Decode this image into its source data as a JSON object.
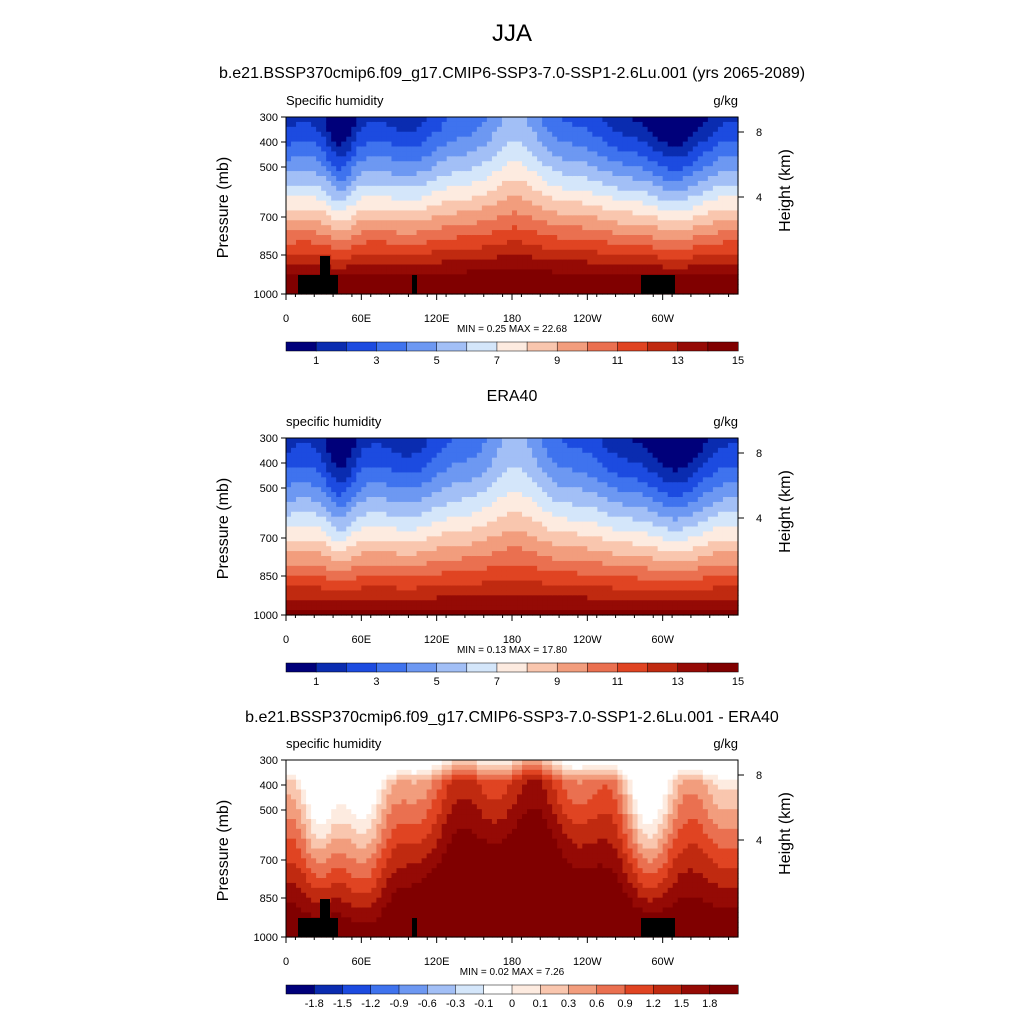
{
  "figure": {
    "main_title": "JJA"
  },
  "colors": {
    "abs_scale": [
      "#00007a",
      "#0a2cb0",
      "#1c4be0",
      "#3f73ee",
      "#6d98f2",
      "#a2bff6",
      "#d4e6fa",
      "#fdebe0",
      "#f9c6ae",
      "#f29d7d",
      "#ea7050",
      "#e04422",
      "#c02a10",
      "#950a05",
      "#800000"
    ],
    "diff_scale": [
      "#00007a",
      "#0a2cb0",
      "#1c4be0",
      "#3f73ee",
      "#6d98f2",
      "#a2bff6",
      "#d4e6fa",
      "#ffffff",
      "#fdebe0",
      "#f9c6ae",
      "#f29d7d",
      "#ea7050",
      "#e04422",
      "#c02a10",
      "#950a05",
      "#800000"
    ]
  },
  "chart_data": [
    {
      "type": "heatmap",
      "title": "b.e21.BSSP370cmip6.f09_g17.CMIP6-SSP3-7.0-SSP1-2.6Lu.001 (yrs 2065-2089)",
      "left_label": "Specific humidity",
      "right_label": "g/kg",
      "xlabel": "",
      "ylabel": "Pressure (mb)",
      "y2label": "Height (km)",
      "x_ticks": [
        "0",
        "60E",
        "120E",
        "180",
        "120W",
        "60W"
      ],
      "y_ticks": [
        "300",
        "400",
        "500",
        "700",
        "850",
        "1000"
      ],
      "y2_ticks": [
        "8",
        "4"
      ],
      "min_max": "MIN =   0.25  MAX =  22.68",
      "colorbar_labels": [
        "1",
        "3",
        "5",
        "7",
        "9",
        "11",
        "13",
        "15"
      ],
      "scale": "abs",
      "shift": 0.0,
      "topography": true
    },
    {
      "type": "heatmap",
      "title": "ERA40",
      "left_label": "specific humidity",
      "right_label": "g/kg",
      "xlabel": "",
      "ylabel": "Pressure (mb)",
      "y2label": "Height (km)",
      "x_ticks": [
        "0",
        "60E",
        "120E",
        "180",
        "120W",
        "60W"
      ],
      "y_ticks": [
        "300",
        "400",
        "500",
        "700",
        "850",
        "1000"
      ],
      "y2_ticks": [
        "8",
        "4"
      ],
      "min_max": "MIN =   0.13  MAX =  17.80",
      "colorbar_labels": [
        "1",
        "3",
        "5",
        "7",
        "9",
        "11",
        "13",
        "15"
      ],
      "scale": "abs",
      "shift": 1.5,
      "topography": false
    },
    {
      "type": "heatmap",
      "title": "b.e21.BSSP370cmip6.f09_g17.CMIP6-SSP3-7.0-SSP1-2.6Lu.001 - ERA40",
      "left_label": "specific humidity",
      "right_label": "g/kg",
      "xlabel": "",
      "ylabel": "Pressure (mb)",
      "y2label": "Height (km)",
      "x_ticks": [
        "0",
        "60E",
        "120E",
        "180",
        "120W",
        "60W"
      ],
      "y_ticks": [
        "300",
        "400",
        "500",
        "700",
        "850",
        "1000"
      ],
      "y2_ticks": [
        "8",
        "4"
      ],
      "min_max": "MIN =   0.02  MAX =   7.26",
      "colorbar_labels": [
        "-1.8",
        "-1.5",
        "-1.2",
        "-0.9",
        "-0.6",
        "-0.3",
        "-0.1",
        "0",
        "0.1",
        "0.3",
        "0.6",
        "0.9",
        "1.2",
        "1.5",
        "1.8"
      ],
      "scale": "diff",
      "shift": 0.0,
      "topography": true
    }
  ]
}
